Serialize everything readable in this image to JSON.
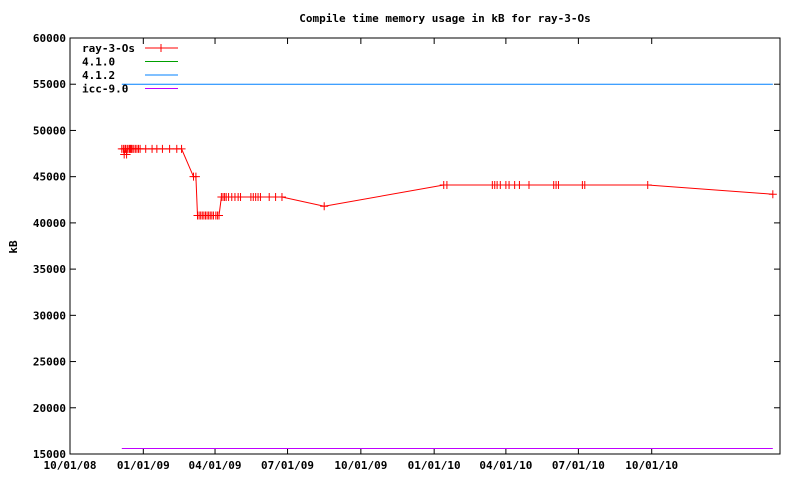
{
  "chart_data": {
    "type": "line",
    "title": "Compile time memory usage in kB for ray-3-Os",
    "xlabel": "",
    "ylabel": "kB",
    "ylim": [
      15000,
      60000
    ],
    "xlim": [
      "2008-10-01",
      "2011-03-11"
    ],
    "y_ticks": [
      "15000",
      "20000",
      "25000",
      "30000",
      "35000",
      "40000",
      "45000",
      "50000",
      "55000",
      "60000"
    ],
    "x_ticks": [
      {
        "date": "2008-10-01",
        "label": "10/01/08"
      },
      {
        "date": "2009-01-01",
        "label": "01/01/09"
      },
      {
        "date": "2009-04-01",
        "label": "04/01/09"
      },
      {
        "date": "2009-07-01",
        "label": "07/01/09"
      },
      {
        "date": "2009-10-01",
        "label": "10/01/09"
      },
      {
        "date": "2010-01-01",
        "label": "01/01/10"
      },
      {
        "date": "2010-04-01",
        "label": "04/01/10"
      },
      {
        "date": "2010-07-01",
        "label": "07/01/10"
      },
      {
        "date": "2010-10-01",
        "label": "10/01/10"
      }
    ],
    "grid": false,
    "legend_position": "top-left",
    "series": [
      {
        "name": "ray-3-Os",
        "color": "#ff0000",
        "marker": "plus",
        "points": [
          [
            "2008-12-05",
            48000
          ],
          [
            "2008-12-07",
            48000
          ],
          [
            "2008-12-08",
            47400
          ],
          [
            "2008-12-09",
            48000
          ],
          [
            "2008-12-10",
            48000
          ],
          [
            "2008-12-11",
            47400
          ],
          [
            "2008-12-12",
            48000
          ],
          [
            "2008-12-14",
            48000
          ],
          [
            "2008-12-15",
            48000
          ],
          [
            "2008-12-16",
            48000
          ],
          [
            "2008-12-17",
            48000
          ],
          [
            "2008-12-18",
            48000
          ],
          [
            "2008-12-20",
            48000
          ],
          [
            "2008-12-22",
            48000
          ],
          [
            "2008-12-24",
            48000
          ],
          [
            "2008-12-26",
            48000
          ],
          [
            "2008-12-28",
            48000
          ],
          [
            "2009-01-04",
            48000
          ],
          [
            "2009-01-12",
            48000
          ],
          [
            "2009-01-18",
            48000
          ],
          [
            "2009-01-25",
            48000
          ],
          [
            "2009-02-03",
            48000
          ],
          [
            "2009-02-12",
            48000
          ],
          [
            "2009-02-18",
            48000
          ],
          [
            "2009-03-05",
            45000
          ],
          [
            "2009-03-08",
            45000
          ],
          [
            "2009-03-10",
            40800
          ],
          [
            "2009-03-12",
            40800
          ],
          [
            "2009-03-14",
            40800
          ],
          [
            "2009-03-16",
            40800
          ],
          [
            "2009-03-18",
            40800
          ],
          [
            "2009-03-20",
            40800
          ],
          [
            "2009-03-22",
            40800
          ],
          [
            "2009-03-24",
            40800
          ],
          [
            "2009-03-26",
            40800
          ],
          [
            "2009-03-28",
            40800
          ],
          [
            "2009-03-30",
            40800
          ],
          [
            "2009-04-02",
            40800
          ],
          [
            "2009-04-04",
            40800
          ],
          [
            "2009-04-06",
            40800
          ],
          [
            "2009-04-09",
            42800
          ],
          [
            "2009-04-11",
            42800
          ],
          [
            "2009-04-13",
            42800
          ],
          [
            "2009-04-15",
            42800
          ],
          [
            "2009-04-18",
            42800
          ],
          [
            "2009-04-22",
            42800
          ],
          [
            "2009-04-26",
            42800
          ],
          [
            "2009-04-30",
            42800
          ],
          [
            "2009-05-03",
            42800
          ],
          [
            "2009-05-16",
            42800
          ],
          [
            "2009-05-19",
            42800
          ],
          [
            "2009-05-22",
            42800
          ],
          [
            "2009-05-25",
            42800
          ],
          [
            "2009-05-28",
            42800
          ],
          [
            "2009-06-08",
            42800
          ],
          [
            "2009-06-16",
            42800
          ],
          [
            "2009-06-24",
            42800
          ],
          [
            "2009-08-16",
            41800
          ],
          [
            "2010-01-13",
            44100
          ],
          [
            "2010-01-17",
            44100
          ],
          [
            "2010-03-15",
            44100
          ],
          [
            "2010-03-18",
            44100
          ],
          [
            "2010-03-21",
            44100
          ],
          [
            "2010-03-25",
            44100
          ],
          [
            "2010-04-01",
            44100
          ],
          [
            "2010-04-05",
            44100
          ],
          [
            "2010-04-12",
            44100
          ],
          [
            "2010-04-18",
            44100
          ],
          [
            "2010-04-30",
            44100
          ],
          [
            "2010-05-31",
            44100
          ],
          [
            "2010-06-03",
            44100
          ],
          [
            "2010-06-06",
            44100
          ],
          [
            "2010-07-06",
            44100
          ],
          [
            "2010-07-09",
            44100
          ],
          [
            "2010-09-26",
            44100
          ],
          [
            "2011-03-02",
            43100
          ]
        ]
      },
      {
        "name": "4.1.0",
        "color": "#00a000",
        "marker": "none",
        "points": []
      },
      {
        "name": "4.1.2",
        "color": "#0080ff",
        "marker": "none",
        "points": [
          [
            "2008-12-05",
            55000
          ],
          [
            "2011-03-02",
            55000
          ]
        ]
      },
      {
        "name": "icc-9.0",
        "color": "#c000ff",
        "marker": "none",
        "points": [
          [
            "2008-12-05",
            15600
          ],
          [
            "2011-03-02",
            15600
          ]
        ]
      }
    ]
  }
}
